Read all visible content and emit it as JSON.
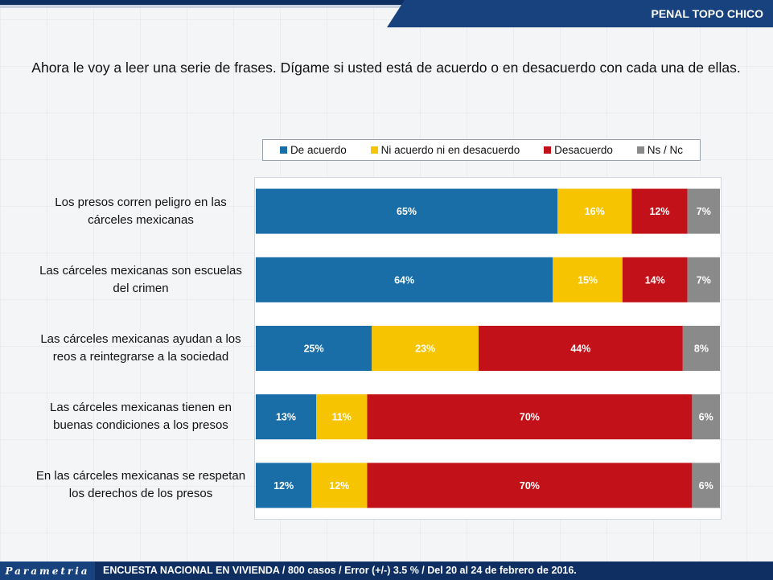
{
  "header": {
    "title": "PENAL TOPO CHICO"
  },
  "question": "Ahora le voy a leer una serie de frases. Dígame si usted está de acuerdo o en desacuerdo con cada una de ellas.",
  "footer": {
    "logo": "Parametria",
    "note": "ENCUESTA NACIONAL EN VIVIENDA / 800 casos / Error (+/-) 3.5 % / Del 20 al 24 de febrero de 2016."
  },
  "chart_data": {
    "type": "bar",
    "orientation": "horizontal",
    "stacked": true,
    "xlim": [
      0,
      100
    ],
    "grid": false,
    "legend_position": "top",
    "categories": [
      "Los presos corren peligro en las cárceles mexicanas",
      "Las cárceles mexicanas son escuelas del crimen",
      "Las cárceles mexicanas ayudan a los reos a reintegrarse a la sociedad",
      "Las cárceles mexicanas tienen en buenas condiciones a los presos",
      "En las cárceles mexicanas se respetan los derechos de los presos"
    ],
    "series": [
      {
        "name": "De acuerdo",
        "color": "#1a6ea8",
        "values": [
          65,
          64,
          25,
          13,
          12
        ]
      },
      {
        "name": "Ni acuerdo ni en desacuerdo",
        "color": "#f6c400",
        "values": [
          16,
          15,
          23,
          11,
          12
        ]
      },
      {
        "name": "Desacuerdo",
        "color": "#c3111a",
        "values": [
          12,
          14,
          44,
          70,
          70
        ]
      },
      {
        "name": "Ns / Nc",
        "color": "#8a8a8a",
        "values": [
          7,
          7,
          8,
          6,
          6
        ]
      }
    ],
    "value_suffix": "%"
  }
}
